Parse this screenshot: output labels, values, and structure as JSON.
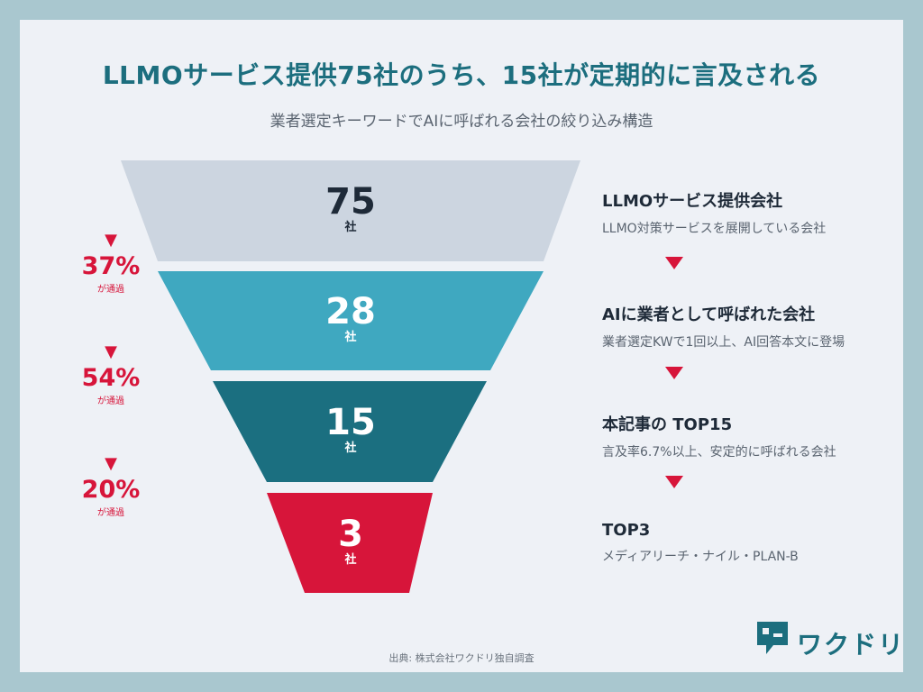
{
  "header": {
    "title": "LLMOサービス提供75社のうち、15社が定期的に言及される",
    "subtitle": "業者選定キーワードでAIに呼ばれる会社の絞り込み構造"
  },
  "funnel": {
    "unit": "社",
    "stages": [
      {
        "value": "75",
        "color": "#ccd5e0",
        "text_color": "#1e2a38",
        "title": "LLMOサービス提供会社",
        "desc": "LLMO対策サービスを展開している会社"
      },
      {
        "value": "28",
        "color": "#3fa8c0",
        "text_color": "#ffffff",
        "title": "AIに業者として呼ばれた会社",
        "desc": "業者選定KWで1回以上、AI回答本文に登場"
      },
      {
        "value": "15",
        "color": "#1b6f80",
        "text_color": "#ffffff",
        "title": "本記事の TOP15",
        "desc": "言及率6.7%以上、安定的に呼ばれる会社"
      },
      {
        "value": "3",
        "color": "#d7153a",
        "text_color": "#ffffff",
        "title": "TOP3",
        "desc": "メディアリーチ・ナイル・PLAN-B"
      }
    ],
    "pass_rates": [
      {
        "pct": "37%",
        "label": "が通過"
      },
      {
        "pct": "54%",
        "label": "が通過"
      },
      {
        "pct": "20%",
        "label": "が通過"
      }
    ]
  },
  "footer": {
    "source": "出典: 株式会社ワクドリ独自調査",
    "logo_text": "ワクドリ",
    "logo_icon": "wakudori-logo-icon"
  }
}
